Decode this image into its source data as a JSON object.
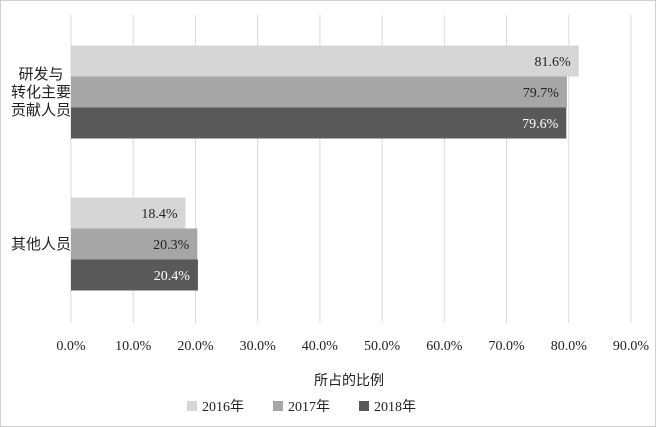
{
  "chart_data": {
    "type": "bar",
    "orientation": "horizontal",
    "categories": [
      "研发与\n转化主要\n贡献人员",
      "其他人员"
    ],
    "series": [
      {
        "name": "2016年",
        "values": [
          81.6,
          18.4
        ],
        "labels": [
          "81.6%",
          "18.4%"
        ],
        "color": "#d6d6d6",
        "label_color": "#222222"
      },
      {
        "name": "2017年",
        "values": [
          79.7,
          20.3
        ],
        "labels": [
          "79.7%",
          "20.3%"
        ],
        "color": "#a6a6a6",
        "label_color": "#222222"
      },
      {
        "name": "2018年",
        "values": [
          79.6,
          20.4
        ],
        "labels": [
          "79.6%",
          "20.4%"
        ],
        "color": "#595959",
        "label_color": "#ffffff"
      }
    ],
    "xlabel": "所占的比例",
    "xlim": [
      0,
      90
    ],
    "xticks": [
      "0.0%",
      "10.0%",
      "20.0%",
      "30.0%",
      "40.0%",
      "50.0%",
      "60.0%",
      "70.0%",
      "80.0%",
      "90.0%"
    ],
    "grid": true,
    "legend_position": "bottom"
  }
}
